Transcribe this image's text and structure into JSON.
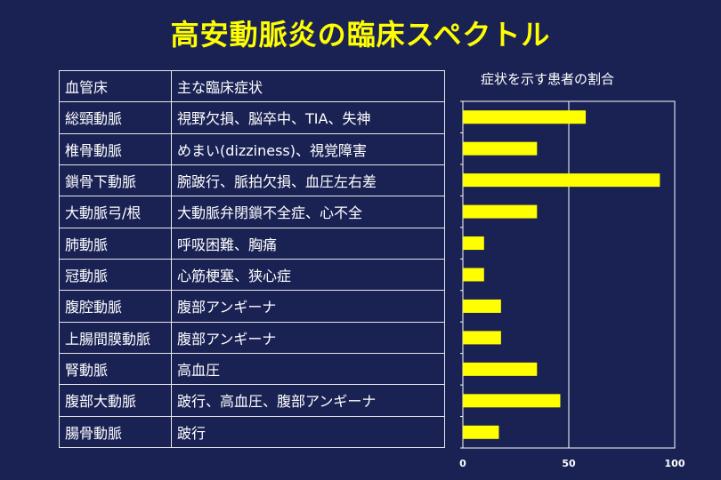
{
  "title": "高安動脈炎の臨床スペクトル",
  "table": {
    "header": [
      "血管床",
      "主な臨床症状"
    ],
    "rows": [
      [
        "総頸動脈",
        "視野欠損、脳卒中、TIA、失神"
      ],
      [
        "椎骨動脈",
        "めまい(dizziness)、視覚障害"
      ],
      [
        "鎖骨下動脈",
        "腕跛行、脈拍欠損、血圧左右差"
      ],
      [
        "大動脈弓/根",
        "大動脈弁閉鎖不全症、心不全"
      ],
      [
        "肺動脈",
        "呼吸困難、胸痛"
      ],
      [
        "冠動脈",
        "心筋梗塞、狭心症"
      ],
      [
        "腹腔動脈",
        "腹部アンギーナ"
      ],
      [
        "上腸間膜動脈",
        "腹部アンギーナ"
      ],
      [
        "腎動脈",
        "高血圧"
      ],
      [
        "腹部大動脈",
        "跛行、高血圧、腹部アンギーナ"
      ],
      [
        "腸骨動脈",
        "跛行"
      ]
    ]
  },
  "chart_data": {
    "type": "bar",
    "orientation": "horizontal",
    "title": "症状を示す患者の割合",
    "categories": [
      "総頸動脈",
      "椎骨動脈",
      "鎖骨下動脈",
      "大動脈弓/根",
      "肺動脈",
      "冠動脈",
      "腹腔動脈",
      "上腸間膜動脈",
      "腎動脈",
      "腹部大動脈",
      "腸骨動脈"
    ],
    "values": [
      58,
      35,
      93,
      35,
      10,
      10,
      18,
      18,
      35,
      46,
      17
    ],
    "xlim": [
      0,
      100
    ],
    "xticks": [
      "0",
      "50",
      "100"
    ],
    "bar_color": "#ffff00",
    "reference_line": 50
  }
}
